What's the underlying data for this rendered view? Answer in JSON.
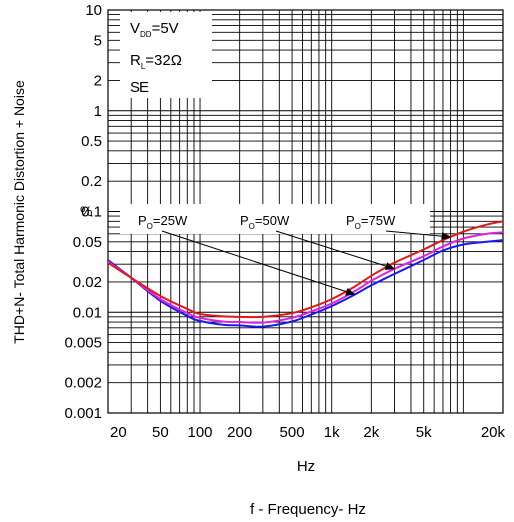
{
  "chart_data": {
    "type": "line",
    "x_scale": "log",
    "y_scale": "log",
    "xlim": [
      20,
      20000
    ],
    "ylim": [
      0.001,
      10
    ],
    "grid": true,
    "x_ticks": [
      {
        "v": 20,
        "label": "20"
      },
      {
        "v": 50,
        "label": "50"
      },
      {
        "v": 100,
        "label": "100"
      },
      {
        "v": 200,
        "label": "200"
      },
      {
        "v": 500,
        "label": "500"
      },
      {
        "v": 1000,
        "label": "1k"
      },
      {
        "v": 2000,
        "label": "2k"
      },
      {
        "v": 5000,
        "label": "5k"
      },
      {
        "v": 20000,
        "label": "20k"
      }
    ],
    "y_ticks": [
      {
        "v": 10,
        "label": "10"
      },
      {
        "v": 5,
        "label": "5"
      },
      {
        "v": 2,
        "label": "2"
      },
      {
        "v": 1,
        "label": "1"
      },
      {
        "v": 0.5,
        "label": "0.5"
      },
      {
        "v": 0.2,
        "label": "0.2"
      },
      {
        "v": 0.1,
        "label": "0.1"
      },
      {
        "v": 0.05,
        "label": "0.05"
      },
      {
        "v": 0.02,
        "label": "0.02"
      },
      {
        "v": 0.01,
        "label": "0.01"
      },
      {
        "v": 0.005,
        "label": "0.005"
      },
      {
        "v": 0.002,
        "label": "0.002"
      },
      {
        "v": 0.001,
        "label": "0.001"
      }
    ],
    "ylabel": "THD+N- Total Harmonic Distortion + Noise",
    "y_unit": "%",
    "x_unit_label": "Hz",
    "xlabel": "f - Frequency- Hz",
    "conditions": {
      "vdd": {
        "main": "V",
        "sub": "DD",
        "rest": "=5V"
      },
      "rl": {
        "main": "R",
        "sub": "L",
        "rest": "=32Ω"
      },
      "mode": "SE"
    },
    "series": [
      {
        "key": "po25",
        "label": {
          "main": "P",
          "sub": "O",
          "rest": "=25W"
        },
        "color": "#1a1aee",
        "points": [
          [
            20,
            0.033
          ],
          [
            30,
            0.022
          ],
          [
            50,
            0.013
          ],
          [
            80,
            0.0092
          ],
          [
            100,
            0.0082
          ],
          [
            150,
            0.0075
          ],
          [
            200,
            0.0074
          ],
          [
            300,
            0.0072
          ],
          [
            500,
            0.0081
          ],
          [
            700,
            0.0095
          ],
          [
            1000,
            0.0115
          ],
          [
            1500,
            0.015
          ],
          [
            2000,
            0.0185
          ],
          [
            3000,
            0.024
          ],
          [
            5000,
            0.033
          ],
          [
            7000,
            0.041
          ],
          [
            10000,
            0.047
          ],
          [
            15000,
            0.05
          ],
          [
            20000,
            0.052
          ]
        ]
      },
      {
        "key": "po50",
        "label": {
          "main": "P",
          "sub": "O",
          "rest": "=50W"
        },
        "color": "#e020e0",
        "points": [
          [
            20,
            0.032
          ],
          [
            30,
            0.022
          ],
          [
            50,
            0.0135
          ],
          [
            80,
            0.0098
          ],
          [
            100,
            0.0088
          ],
          [
            150,
            0.0081
          ],
          [
            200,
            0.008
          ],
          [
            300,
            0.0079
          ],
          [
            500,
            0.0088
          ],
          [
            700,
            0.0102
          ],
          [
            1000,
            0.0122
          ],
          [
            1500,
            0.0162
          ],
          [
            2000,
            0.0205
          ],
          [
            3000,
            0.027
          ],
          [
            5000,
            0.036
          ],
          [
            7000,
            0.045
          ],
          [
            10000,
            0.054
          ],
          [
            15000,
            0.06
          ],
          [
            20000,
            0.062
          ]
        ]
      },
      {
        "key": "po75",
        "label": {
          "main": "P",
          "sub": "O",
          "rest": "=75W"
        },
        "color": "#e01818",
        "points": [
          [
            20,
            0.031
          ],
          [
            30,
            0.022
          ],
          [
            50,
            0.0145
          ],
          [
            80,
            0.0108
          ],
          [
            100,
            0.0096
          ],
          [
            150,
            0.0091
          ],
          [
            200,
            0.009
          ],
          [
            300,
            0.009
          ],
          [
            500,
            0.0098
          ],
          [
            700,
            0.0112
          ],
          [
            1000,
            0.0135
          ],
          [
            1500,
            0.018
          ],
          [
            2000,
            0.023
          ],
          [
            3000,
            0.031
          ],
          [
            5000,
            0.042
          ],
          [
            7000,
            0.052
          ],
          [
            10000,
            0.063
          ],
          [
            15000,
            0.074
          ],
          [
            20000,
            0.08
          ]
        ]
      }
    ],
    "annotation_targets": [
      {
        "series": "po25",
        "x": 1500
      },
      {
        "series": "po50",
        "x": 3000
      },
      {
        "series": "po75",
        "x": 8000
      }
    ]
  }
}
